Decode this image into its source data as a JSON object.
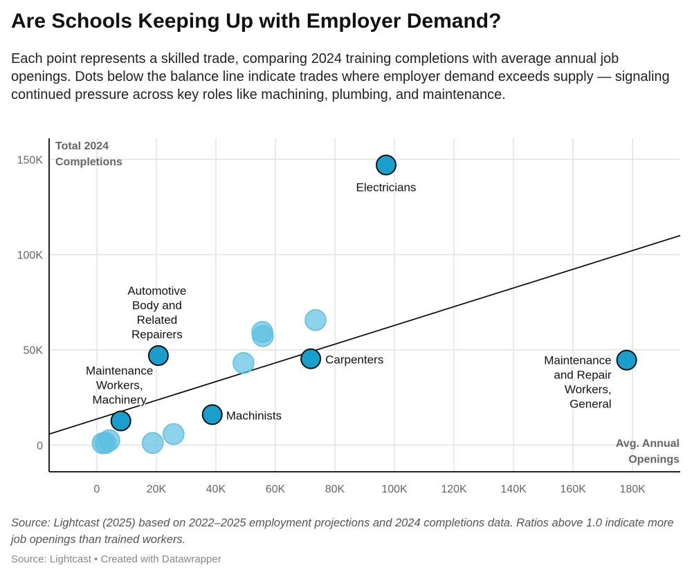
{
  "title": "Are Schools Keeping Up with Employer Demand?",
  "subtitle": "Each point represents a skilled trade, comparing 2024 training completions with average annual job openings. Dots below the balance line indicate trades where employer demand exceeds supply — signaling continued pressure across key roles like machining, plumbing, and maintenance.",
  "notes": "Source: Lightcast (2025) based on 2022–2025 employment projections and 2024 completions data. Ratios above 1.0 indicate more job openings than trained workers.",
  "credit": "Source: Lightcast • Created with Datawrapper",
  "chart_data": {
    "type": "scatter",
    "xlabel": "Avg. Annual Openings",
    "ylabel": "Total 2024 Completions",
    "xlim": [
      -16000,
      196000
    ],
    "ylim": [
      -14000,
      161000
    ],
    "x_ticks": [
      0,
      20000,
      40000,
      60000,
      80000,
      100000,
      120000,
      140000,
      160000,
      180000
    ],
    "x_tick_labels": [
      "0",
      "20K",
      "40K",
      "60K",
      "80K",
      "100K",
      "120K",
      "140K",
      "160K",
      "180K"
    ],
    "y_ticks": [
      0,
      50000,
      100000,
      150000
    ],
    "y_tick_labels": [
      "0",
      "50K",
      "100K",
      "150K"
    ],
    "grid": true,
    "colors": {
      "highlight": "#1a9fcc",
      "other": "#5bbfe0",
      "outline": "#111111"
    },
    "balance_line": {
      "x": [
        -16000,
        196000
      ],
      "y": [
        5800,
        110000
      ]
    },
    "highlighted": [
      {
        "label": "Electricians",
        "x": 97200,
        "y": 147000
      },
      {
        "label": "Automotive Body and Related Repairers",
        "x": 20700,
        "y": 47000
      },
      {
        "label": "Maintenance Workers, Machinery",
        "x": 8100,
        "y": 12700
      },
      {
        "label": "Machinists",
        "x": 38800,
        "y": 16000
      },
      {
        "label": "Carpenters",
        "x": 71900,
        "y": 45300
      },
      {
        "label": "Maintenance and Repair Workers, General",
        "x": 178000,
        "y": 44600
      }
    ],
    "others": [
      {
        "x": 73500,
        "y": 65600
      },
      {
        "x": 55600,
        "y": 59400
      },
      {
        "x": 55800,
        "y": 57200
      },
      {
        "x": 49300,
        "y": 43100
      },
      {
        "x": 25800,
        "y": 5800
      },
      {
        "x": 18800,
        "y": 1100
      },
      {
        "x": 4200,
        "y": 2500
      },
      {
        "x": 3000,
        "y": 1100
      },
      {
        "x": 2000,
        "y": 1000
      }
    ]
  }
}
